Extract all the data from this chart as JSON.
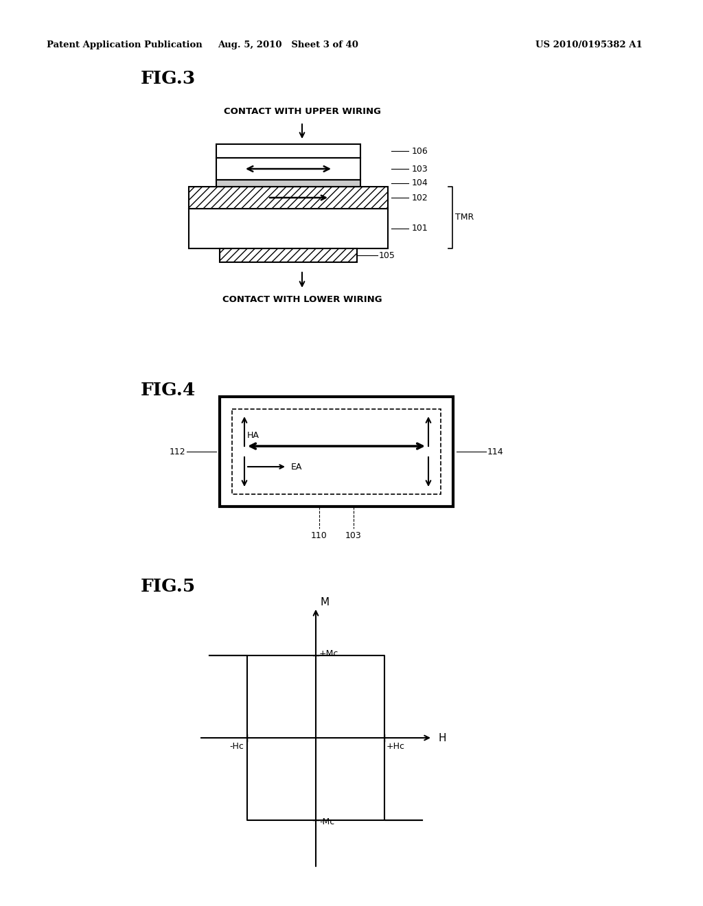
{
  "bg_color": "#ffffff",
  "header_left": "Patent Application Publication",
  "header_mid": "Aug. 5, 2010   Sheet 3 of 40",
  "header_right": "US 2010/0195382 A1",
  "fig3_label": "FIG.3",
  "fig4_label": "FIG.4",
  "fig5_label": "FIG.5",
  "contact_upper": "CONTACT WITH UPPER WIRING",
  "contact_lower": "CONTACT WITH LOWER WIRING",
  "tmr_label": "TMR",
  "layer_labels_right": [
    "106",
    "103",
    "104",
    "102",
    "101"
  ],
  "label_105": "105",
  "fig4_label_112": "112",
  "fig4_label_114": "114",
  "fig4_label_HA": "HA",
  "fig4_label_EA": "EA",
  "fig4_label_110": "110",
  "fig4_label_103": "103",
  "fig5_plus_Mc": "+Mc",
  "fig5_minus_Mc": "-Mc",
  "fig5_minus_Hc": "-Hc",
  "fig5_plus_Hc": "+Hc",
  "fig5_M": "M",
  "fig5_H": "H"
}
